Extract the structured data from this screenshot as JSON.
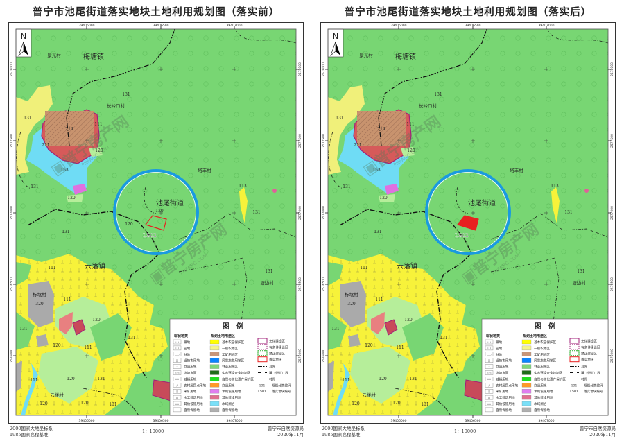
{
  "panels": [
    {
      "title": "普宁市池尾街道落实地块土地利用规划图（落实前）",
      "state": "before",
      "plot_labels": [
        "120",
        "120"
      ]
    },
    {
      "title": "普宁市池尾街道落实地块土地利用规划图（落实后）",
      "state": "after",
      "plot_labels": []
    }
  ],
  "x_ticks": [
    "39406000",
    "39406500",
    "39407000"
  ],
  "y_ticks": [
    "2578000",
    "2577500",
    "2577000",
    "2576500",
    "2576000"
  ],
  "north_label": "N",
  "map_labels": [
    "景光村",
    "梅塘镇",
    "131",
    "长岭口村",
    "131",
    "214",
    "211",
    "111",
    "120",
    "153",
    "131",
    "120",
    "塔丰村",
    "池尾街道",
    "113",
    "131",
    "云落镇",
    "131",
    "塘边村",
    "131",
    "111",
    "标坑村",
    "320",
    "111",
    "120",
    "131",
    "120",
    "111",
    "131",
    "120",
    "131",
    "111",
    "云楼村",
    "120",
    "120",
    "131",
    "120"
  ],
  "plot_id": "LS02",
  "legend": {
    "title": "图　例",
    "current_header": "现状地类",
    "planned_header": "规划土地用途区",
    "current": [
      {
        "label": "耕地",
        "glyph": "⊥⊥"
      },
      {
        "label": "园地",
        "glyph": "⊥⊥"
      },
      {
        "label": "林地",
        "glyph": "○○"
      },
      {
        "label": "设施农用地",
        "glyph": "┆┆"
      },
      {
        "label": "交通用地",
        "glyph": "═"
      },
      {
        "label": "坑塘水面",
        "glyph": "~ ~"
      },
      {
        "label": "城镇用地",
        "glyph": "××"
      },
      {
        "label": "农村居民点用地",
        "glyph": "//"
      },
      {
        "label": "采矿用地",
        "glyph": "||"
      },
      {
        "label": "水工建筑用地",
        "glyph": "▭"
      },
      {
        "label": "其他设施用地",
        "glyph": "××"
      },
      {
        "label": "自然保留地",
        "glyph": ""
      }
    ],
    "planned": [
      {
        "label": "基本农田保护区",
        "color": "#ffff00"
      },
      {
        "label": "一般农地区",
        "color": "#f5f58a"
      },
      {
        "label": "工矿用地区",
        "color": "#c8967a"
      },
      {
        "label": "风景旅游用地区",
        "color": "#0a84ff"
      },
      {
        "label": "林业用地区",
        "color": "#7ed77a"
      },
      {
        "label": "生态环境安全控制区",
        "color": "#1f6b1a"
      },
      {
        "label": "自然与文化遗产保护区",
        "color": "#22dd22"
      },
      {
        "label": "交通用地",
        "color": "#ff9a2a"
      },
      {
        "label": "水利设施用地",
        "color": "#e07ef0"
      },
      {
        "label": "其他建设用地",
        "color": "#e07090"
      },
      {
        "label": "水域湖泊",
        "color": "#7ae0f8"
      },
      {
        "label": "自然保留地",
        "color": "#b0b0b0"
      }
    ],
    "zones": [
      {
        "label": "允许建设区",
        "color": "#a0207a",
        "style": "solid"
      },
      {
        "label": "有条件建设区",
        "color": "#a0207a",
        "style": "dashed"
      },
      {
        "label": "禁止建设区",
        "color": "#22aa22",
        "style": "dashed"
      },
      {
        "label": "落实地块",
        "color": "#e82020",
        "style": "solid"
      }
    ],
    "lines": [
      {
        "label": "县界",
        "style": "county"
      },
      {
        "label": "镇（街道）界",
        "style": "town"
      },
      {
        "label": "村界",
        "style": "village"
      }
    ],
    "codes": [
      {
        "sample": "131",
        "label": "规划分类编码"
      },
      {
        "sample": "LS01",
        "label": "落实地块编号"
      }
    ]
  },
  "watermark": {
    "text": "普宁房产网",
    "sub": "PNFANG.COM"
  },
  "footer": {
    "coord_system": "2000国家大地坐标系",
    "elevation": "1985国家高程基准",
    "scale": "1：10000",
    "agency": "普宁市自然资源局",
    "date": "2020年11月"
  },
  "colors": {
    "forest": "#78d673",
    "general_farm": "#f0f07a",
    "basic_farm": "#f7f23a",
    "light_green": "#b6ee9a",
    "water": "#6fdcf5",
    "mining": "#d65a5a",
    "mining_hatch": "#c8936e",
    "gray": "#aaaaaa",
    "buffer_ring": "#1a9ae0",
    "plot": "#e82020",
    "allowed": "#a0207a"
  }
}
